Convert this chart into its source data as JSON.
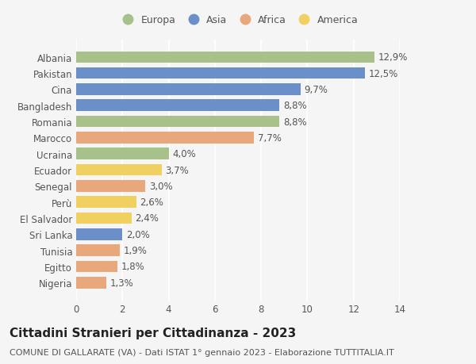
{
  "categories": [
    "Albania",
    "Pakistan",
    "Cina",
    "Bangladesh",
    "Romania",
    "Marocco",
    "Ucraina",
    "Ecuador",
    "Senegal",
    "Perù",
    "El Salvador",
    "Sri Lanka",
    "Tunisia",
    "Egitto",
    "Nigeria"
  ],
  "values": [
    12.9,
    12.5,
    9.7,
    8.8,
    8.8,
    7.7,
    4.0,
    3.7,
    3.0,
    2.6,
    2.4,
    2.0,
    1.9,
    1.8,
    1.3
  ],
  "colors": [
    "#a8c08a",
    "#6b8fc9",
    "#6b8fc9",
    "#6b8fc9",
    "#a8c08a",
    "#e8a87c",
    "#a8c08a",
    "#f0d060",
    "#e8a87c",
    "#f0d060",
    "#f0d060",
    "#6b8fc9",
    "#e8a87c",
    "#e8a87c",
    "#e8a87c"
  ],
  "legend_labels": [
    "Europa",
    "Asia",
    "Africa",
    "America"
  ],
  "legend_colors": [
    "#a8c08a",
    "#6b8fc9",
    "#e8a87c",
    "#f0d060"
  ],
  "title": "Cittadini Stranieri per Cittadinanza - 2023",
  "subtitle": "COMUNE DI GALLARATE (VA) - Dati ISTAT 1° gennaio 2023 - Elaborazione TUTTITALIA.IT",
  "xlim": [
    0,
    14
  ],
  "xticks": [
    0,
    2,
    4,
    6,
    8,
    10,
    12,
    14
  ],
  "background_color": "#f5f5f5",
  "grid_color": "#ffffff",
  "bar_height": 0.72,
  "title_fontsize": 11,
  "subtitle_fontsize": 8,
  "legend_fontsize": 9,
  "tick_fontsize": 8.5,
  "value_fontsize": 8.5
}
